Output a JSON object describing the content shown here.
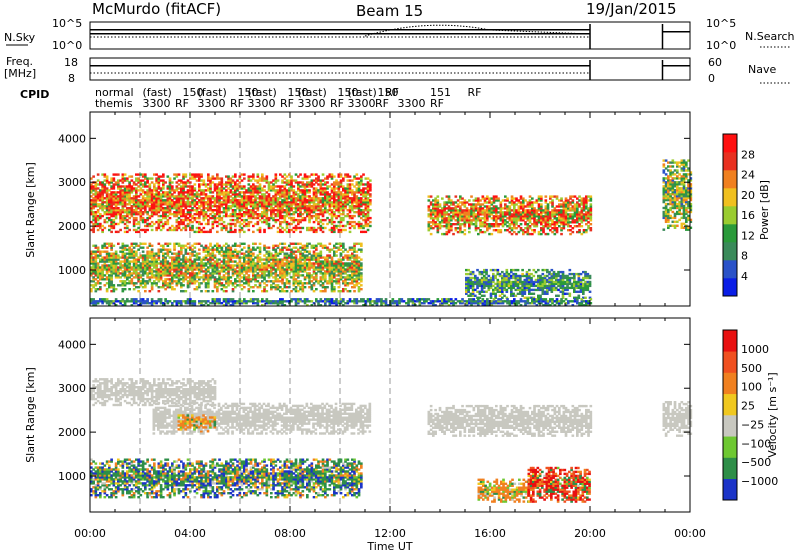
{
  "header": {
    "station": "McMurdo (fitACF)",
    "beam": "Beam 15",
    "date": "19/Jan/2015"
  },
  "panels": {
    "sky_search": {
      "left_label": "N.Sky",
      "right_label": "N.Search",
      "left_ticks": [
        "10^5",
        "10^0"
      ],
      "right_ticks": [
        "10^5",
        "10^0"
      ]
    },
    "freq_nave": {
      "left_label_1": "Freq.",
      "left_label_2": "[MHz]",
      "right_label": "Nave",
      "left_ticks": [
        "18",
        "8"
      ],
      "right_ticks": [
        "60",
        "0"
      ]
    },
    "cpid": {
      "label": "CPID",
      "row1": [
        {
          "t": 0.2,
          "text": "normal"
        },
        {
          "t": 2.1,
          "text": "(fast)"
        },
        {
          "t": 3.7,
          "text": "150"
        },
        {
          "t": 4.3,
          "text": "(fast)"
        },
        {
          "t": 5.9,
          "text": "150"
        },
        {
          "t": 6.3,
          "text": "(fast)"
        },
        {
          "t": 7.9,
          "text": "150"
        },
        {
          "t": 8.3,
          "text": "(fast)"
        },
        {
          "t": 9.9,
          "text": "150"
        },
        {
          "t": 10.3,
          "text": "(fast)"
        },
        {
          "t": 11.5,
          "text": "150"
        },
        {
          "t": 11.8,
          "text": "RF"
        },
        {
          "t": 13.6,
          "text": "151"
        },
        {
          "t": 15.1,
          "text": "RF"
        }
      ],
      "row2": [
        {
          "t": 0.2,
          "text": "themis"
        },
        {
          "t": 2.1,
          "text": "3300"
        },
        {
          "t": 3.4,
          "text": "RF"
        },
        {
          "t": 4.3,
          "text": "3300"
        },
        {
          "t": 5.6,
          "text": "RF"
        },
        {
          "t": 6.3,
          "text": "3300"
        },
        {
          "t": 7.6,
          "text": "RF"
        },
        {
          "t": 8.3,
          "text": "3300"
        },
        {
          "t": 9.6,
          "text": "RF"
        },
        {
          "t": 10.3,
          "text": "3300"
        },
        {
          "t": 11.4,
          "text": "RF"
        },
        {
          "t": 12.3,
          "text": "3300"
        },
        {
          "t": 13.6,
          "text": "RF"
        }
      ]
    },
    "power": {
      "ylabel": "Slant Range [km]",
      "colorbar_label": "Power [dB]",
      "colorbar_ticks": [
        "28",
        "24",
        "20",
        "16",
        "12",
        "8",
        "4"
      ]
    },
    "velocity": {
      "ylabel": "Slant Range [km]",
      "colorbar_label": "Velocity [m s⁻¹]",
      "colorbar_ticks": [
        "1000",
        "500",
        "100",
        "25",
        "−25",
        "−100",
        "−500",
        "−1000"
      ]
    }
  },
  "xaxis": {
    "label": "Time UT",
    "ticks": [
      "00:00",
      "04:00",
      "08:00",
      "12:00",
      "16:00",
      "20:00",
      "00:00"
    ]
  },
  "colors": {
    "power_scale": [
      "#0a1ee6",
      "#2a52c8",
      "#3a8a5a",
      "#2a9a3a",
      "#9acc30",
      "#f0c020",
      "#f08020",
      "#e83020",
      "#ff1010"
    ],
    "velocity_scale": [
      "#1c34c8",
      "#2e8e48",
      "#6ec832",
      "#c8c8c0",
      "#f0c820",
      "#f08020",
      "#f05020",
      "#e81010"
    ]
  },
  "chart_data": [
    {
      "type": "heatmap",
      "title": "Power",
      "xlabel": "Time UT",
      "ylabel": "Slant Range [km]",
      "xlim": [
        0,
        24
      ],
      "ylim": [
        180,
        4600
      ],
      "yticks": [
        1000,
        2000,
        3000,
        4000
      ],
      "value_label": "Power [dB]",
      "value_range": [
        0,
        30
      ],
      "data_gaps": [
        [
          20.0,
          22.9
        ]
      ],
      "dashed_time_markers": [
        2.0,
        4.0,
        6.0,
        8.0,
        10.0,
        12.0
      ],
      "echo_bands": [
        {
          "t0": 0.0,
          "t1": 11.2,
          "r0": 1850,
          "r1": 3200,
          "level": 22
        },
        {
          "t0": 0.0,
          "t1": 10.8,
          "r0": 500,
          "r1": 1600,
          "level": 16
        },
        {
          "t0": 13.5,
          "t1": 20.0,
          "r0": 1800,
          "r1": 2700,
          "level": 20
        },
        {
          "t0": 15.0,
          "t1": 20.0,
          "r0": 350,
          "r1": 1000,
          "level": 10
        },
        {
          "t0": 0.0,
          "t1": 20.0,
          "r0": 180,
          "r1": 350,
          "level": 8
        },
        {
          "t0": 22.9,
          "t1": 24.0,
          "r0": 1900,
          "r1": 3500,
          "level": 14
        }
      ]
    },
    {
      "type": "heatmap",
      "title": "Velocity",
      "xlabel": "Time UT",
      "ylabel": "Slant Range [km]",
      "xlim": [
        0,
        24
      ],
      "ylim": [
        180,
        4600
      ],
      "yticks": [
        1000,
        2000,
        3000,
        4000
      ],
      "value_label": "Velocity [m s⁻¹]",
      "value_range": [
        -1000,
        1000
      ],
      "data_gaps": [
        [
          20.0,
          22.9
        ]
      ],
      "dashed_time_markers": [
        2.0,
        4.0,
        6.0,
        8.0,
        10.0,
        12.0
      ],
      "echo_bands": [
        {
          "t0": 2.5,
          "t1": 11.2,
          "r0": 1950,
          "r1": 2650,
          "level": 0
        },
        {
          "t0": 13.5,
          "t1": 20.0,
          "r0": 1900,
          "r1": 2600,
          "level": 0
        },
        {
          "t0": 0.0,
          "t1": 10.8,
          "r0": 500,
          "r1": 1400,
          "level": 250
        },
        {
          "t0": 0.0,
          "t1": 5.0,
          "r0": 2600,
          "r1": 3200,
          "level": 0
        },
        {
          "t0": 15.5,
          "t1": 17.5,
          "r0": 400,
          "r1": 900,
          "level": -150
        },
        {
          "t0": 17.5,
          "t1": 20.0,
          "r0": 400,
          "r1": 1200,
          "level": -600
        },
        {
          "t0": 3.5,
          "t1": 5.0,
          "r0": 2000,
          "r1": 2400,
          "level": -150
        },
        {
          "t0": 22.9,
          "t1": 24.0,
          "r0": 1900,
          "r1": 2700,
          "level": 0
        }
      ]
    }
  ]
}
